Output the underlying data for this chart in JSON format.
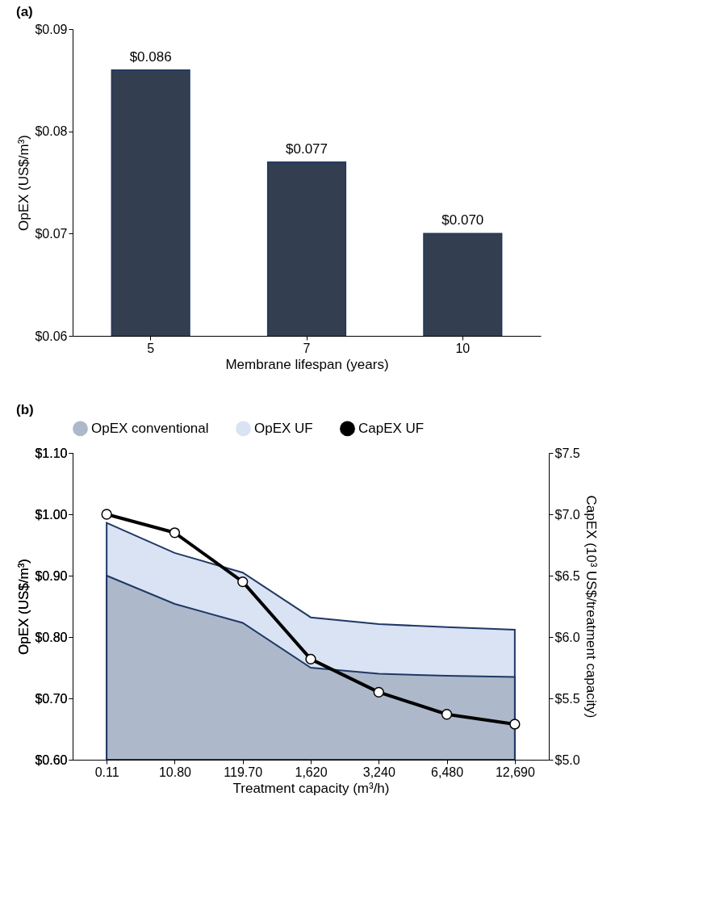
{
  "chart_data": [
    {
      "type": "bar",
      "annotations": [
        "(a)"
      ],
      "categories": [
        "5",
        "7",
        "10"
      ],
      "xlabel": "Membrane lifespan (years)",
      "ylabel": "OpEX (US$/m³)",
      "series": [
        {
          "color": "#333f50",
          "values": [
            0.086,
            0.077,
            0.07
          ],
          "value_labels": [
            "$0.086",
            "$0.077",
            "$0.070"
          ]
        }
      ],
      "ylim": [
        0.06,
        0.09
      ],
      "yticks": [
        {
          "value": 0.06,
          "label": "$0.06"
        },
        {
          "value": 0.07,
          "label": "$0.07"
        },
        {
          "value": 0.08,
          "label": "$0.08"
        },
        {
          "value": 0.09,
          "label": "$0.09"
        }
      ],
      "grid": false
    },
    {
      "type": "area",
      "annotations": [
        "(b)"
      ],
      "categories": [
        "0.11",
        "10.80",
        "119.70",
        "1,620",
        "3,240",
        "6,480",
        "12,690"
      ],
      "xlabel": "Treatment capacity (m³/h)",
      "ylabel": "OpEX (US$/m³)",
      "y2label": "CapEX (10³ US$/treatment capacity)",
      "legend": "top",
      "grid": false,
      "series": [
        {
          "name": "OpEX conventional",
          "color": "#adb9ca",
          "values": [
            0.9,
            0.854,
            0.823,
            0.75,
            0.74,
            0.737,
            0.735
          ]
        },
        {
          "name": "OpEX UF",
          "color": "#dae3f3",
          "values": [
            0.986,
            0.937,
            0.905,
            0.832,
            0.821,
            0.816,
            0.812
          ]
        },
        {
          "name": "CapEX UF",
          "type": "line",
          "axis": "y2",
          "color": "#000000",
          "marker": "circle",
          "values": [
            7.0,
            6.85,
            6.45,
            5.82,
            5.55,
            5.37,
            5.29
          ]
        }
      ],
      "ylim": [
        0.6,
        1.1
      ],
      "yticks": [
        {
          "value": 0.6,
          "label": "$0.60"
        },
        {
          "value": 0.7,
          "label": "$0.70"
        },
        {
          "value": 0.8,
          "label": "$0.80"
        },
        {
          "value": 0.9,
          "label": "$0.90"
        },
        {
          "value": 1.0,
          "label": "$1.00"
        },
        {
          "value": 1.1,
          "label": "$1.10"
        }
      ],
      "y2lim": [
        5.0,
        7.5
      ],
      "y2ticks": [
        {
          "value": 5.0,
          "label": "$5.0"
        },
        {
          "value": 5.5,
          "label": "$5.5"
        },
        {
          "value": 6.0,
          "label": "$6.0"
        },
        {
          "value": 6.5,
          "label": "$6.5"
        },
        {
          "value": 7.0,
          "label": "$7.0"
        },
        {
          "value": 7.5,
          "label": "$7.5"
        }
      ]
    }
  ]
}
